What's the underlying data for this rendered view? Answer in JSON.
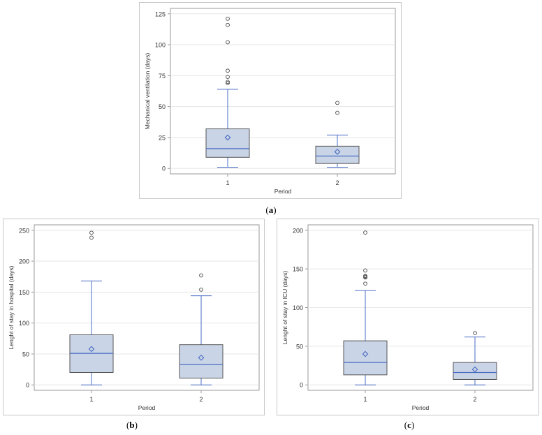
{
  "chart_data": [
    {
      "type": "boxplot",
      "panel": "a",
      "caption_letter": "a",
      "xlabel": "Period",
      "ylabel": "Mechanical ventilation (days)",
      "ylim": [
        0,
        125
      ],
      "yticks": [
        0,
        25,
        50,
        75,
        100,
        125
      ],
      "categories": [
        "1",
        "2"
      ],
      "boxes": [
        {
          "category": "1",
          "min": 1,
          "q1": 9,
          "median": 16,
          "q3": 32,
          "max": 64,
          "mean": 25,
          "outliers": [
            69,
            70,
            74,
            79,
            102,
            116,
            121
          ]
        },
        {
          "category": "2",
          "min": 1,
          "q1": 4,
          "median": 10,
          "q3": 18,
          "max": 27,
          "mean": 13.5,
          "outliers": [
            45,
            53
          ]
        }
      ]
    },
    {
      "type": "boxplot",
      "panel": "b",
      "caption_letter": "b",
      "xlabel": "Period",
      "ylabel": "Lenght of stay in hospital (days)",
      "ylim": [
        0,
        250
      ],
      "yticks": [
        0,
        50,
        100,
        150,
        200,
        250
      ],
      "categories": [
        "1",
        "2"
      ],
      "boxes": [
        {
          "category": "1",
          "min": 0,
          "q1": 20,
          "median": 51,
          "q3": 81,
          "max": 168,
          "mean": 58,
          "outliers": [
            238,
            246
          ]
        },
        {
          "category": "2",
          "min": 0,
          "q1": 11,
          "median": 33,
          "q3": 65,
          "max": 144,
          "mean": 44,
          "outliers": [
            154,
            177
          ]
        }
      ]
    },
    {
      "type": "boxplot",
      "panel": "c",
      "caption_letter": "c",
      "xlabel": "Period",
      "ylabel": "Lenght of stay in ICU (days)",
      "ylim": [
        0,
        200
      ],
      "yticks": [
        0,
        50,
        100,
        150,
        200
      ],
      "categories": [
        "1",
        "2"
      ],
      "boxes": [
        {
          "category": "1",
          "min": 0,
          "q1": 13,
          "median": 29,
          "q3": 57,
          "max": 122,
          "mean": 40,
          "outliers": [
            131,
            139,
            140,
            141,
            148,
            197
          ]
        },
        {
          "category": "2",
          "min": 0,
          "q1": 7,
          "median": 16,
          "q3": 29,
          "max": 62,
          "mean": 20,
          "outliers": [
            67
          ]
        }
      ]
    }
  ],
  "colors": {
    "box_fill": "#c9d4e6",
    "box_edge": "#555555",
    "median": "#4a6cc4",
    "whisker": "#4a6cc4",
    "mean_marker": "#4a6cc4",
    "outlier": "#444444",
    "grid": "#e6e6e6",
    "axis": "#999999"
  }
}
